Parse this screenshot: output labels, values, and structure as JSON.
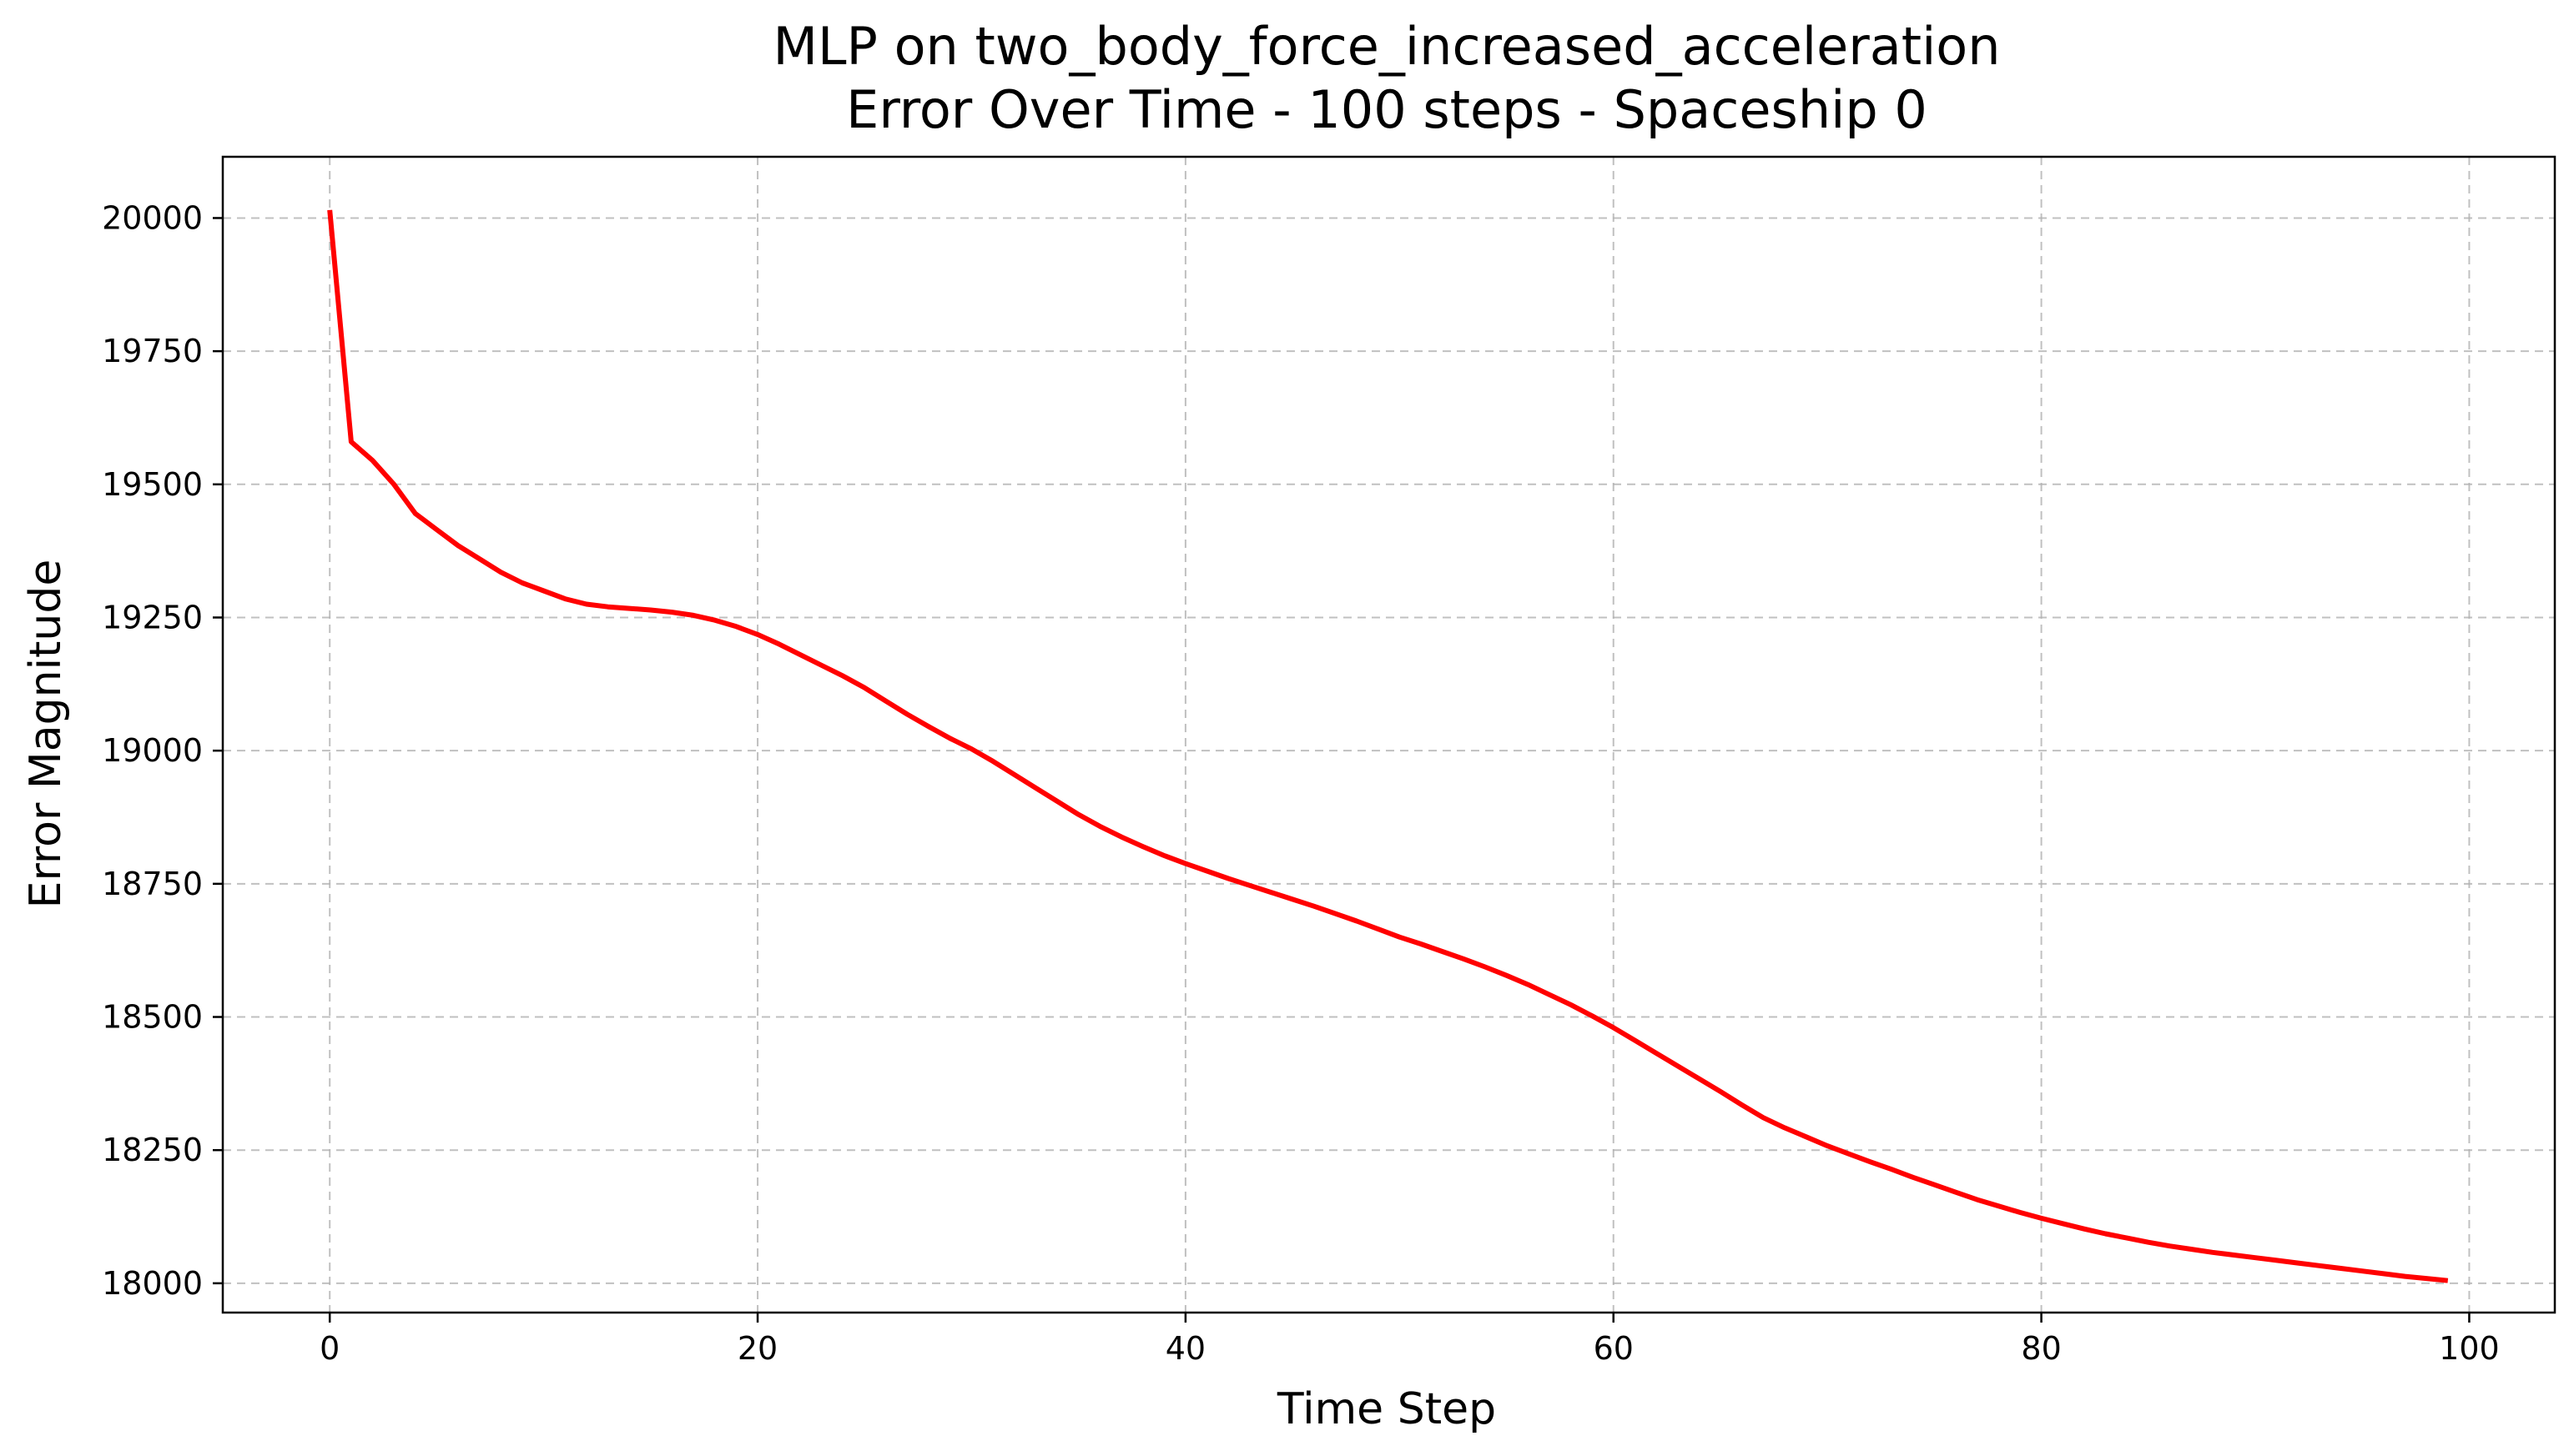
{
  "chart_data": {
    "type": "line",
    "title": "MLP on two_body_force_increased_acceleration",
    "subtitle": "Error Over Time - 100 steps - Spaceship 0",
    "xlabel": "Time Step",
    "ylabel": "Error Magnitude",
    "xlim": [
      -5,
      104
    ],
    "ylim": [
      17945,
      20115
    ],
    "xticks": [
      0,
      20,
      40,
      60,
      80,
      100
    ],
    "yticks": [
      18000,
      18250,
      18500,
      18750,
      19000,
      19250,
      19500,
      19750,
      20000
    ],
    "grid": true,
    "line_color": "#ff0000",
    "series": [
      {
        "x": [
          0,
          1,
          2,
          3,
          4,
          5,
          6,
          7,
          8,
          9,
          10,
          11,
          12,
          13,
          14,
          15,
          16,
          17,
          18,
          19,
          20,
          21,
          22,
          23,
          24,
          25,
          26,
          27,
          28,
          29,
          30,
          31,
          32,
          33,
          34,
          35,
          36,
          37,
          38,
          39,
          40,
          41,
          42,
          43,
          44,
          45,
          46,
          47,
          48,
          49,
          50,
          51,
          52,
          53,
          54,
          55,
          56,
          57,
          58,
          59,
          60,
          61,
          62,
          63,
          64,
          65,
          66,
          67,
          68,
          69,
          70,
          71,
          72,
          73,
          74,
          75,
          76,
          77,
          78,
          79,
          80,
          81,
          82,
          83,
          84,
          85,
          86,
          87,
          88,
          89,
          90,
          91,
          92,
          93,
          94,
          95,
          96,
          97,
          98,
          99
        ],
        "values": [
          20015,
          19580,
          19545,
          19500,
          19445,
          19415,
          19385,
          19360,
          19335,
          19315,
          19300,
          19285,
          19275,
          19270,
          19267,
          19264,
          19260,
          19254,
          19245,
          19233,
          19218,
          19200,
          19180,
          19160,
          19140,
          19118,
          19093,
          19068,
          19045,
          19023,
          19003,
          18980,
          18955,
          18930,
          18905,
          18880,
          18858,
          18838,
          18820,
          18803,
          18788,
          18774,
          18760,
          18747,
          18734,
          18721,
          18708,
          18694,
          18680,
          18665,
          18650,
          18637,
          18623,
          18609,
          18594,
          18578,
          18561,
          18542,
          18523,
          18502,
          18480,
          18456,
          18432,
          18408,
          18384,
          18360,
          18335,
          18311,
          18292,
          18275,
          18258,
          18243,
          18228,
          18214,
          18199,
          18185,
          18171,
          18157,
          18145,
          18133,
          18122,
          18112,
          18102,
          18093,
          18085,
          18077,
          18070,
          18064,
          18058,
          18053,
          18048,
          18043,
          18038,
          18033,
          18028,
          18023,
          18018,
          18013,
          18009,
          18005
        ]
      }
    ]
  }
}
